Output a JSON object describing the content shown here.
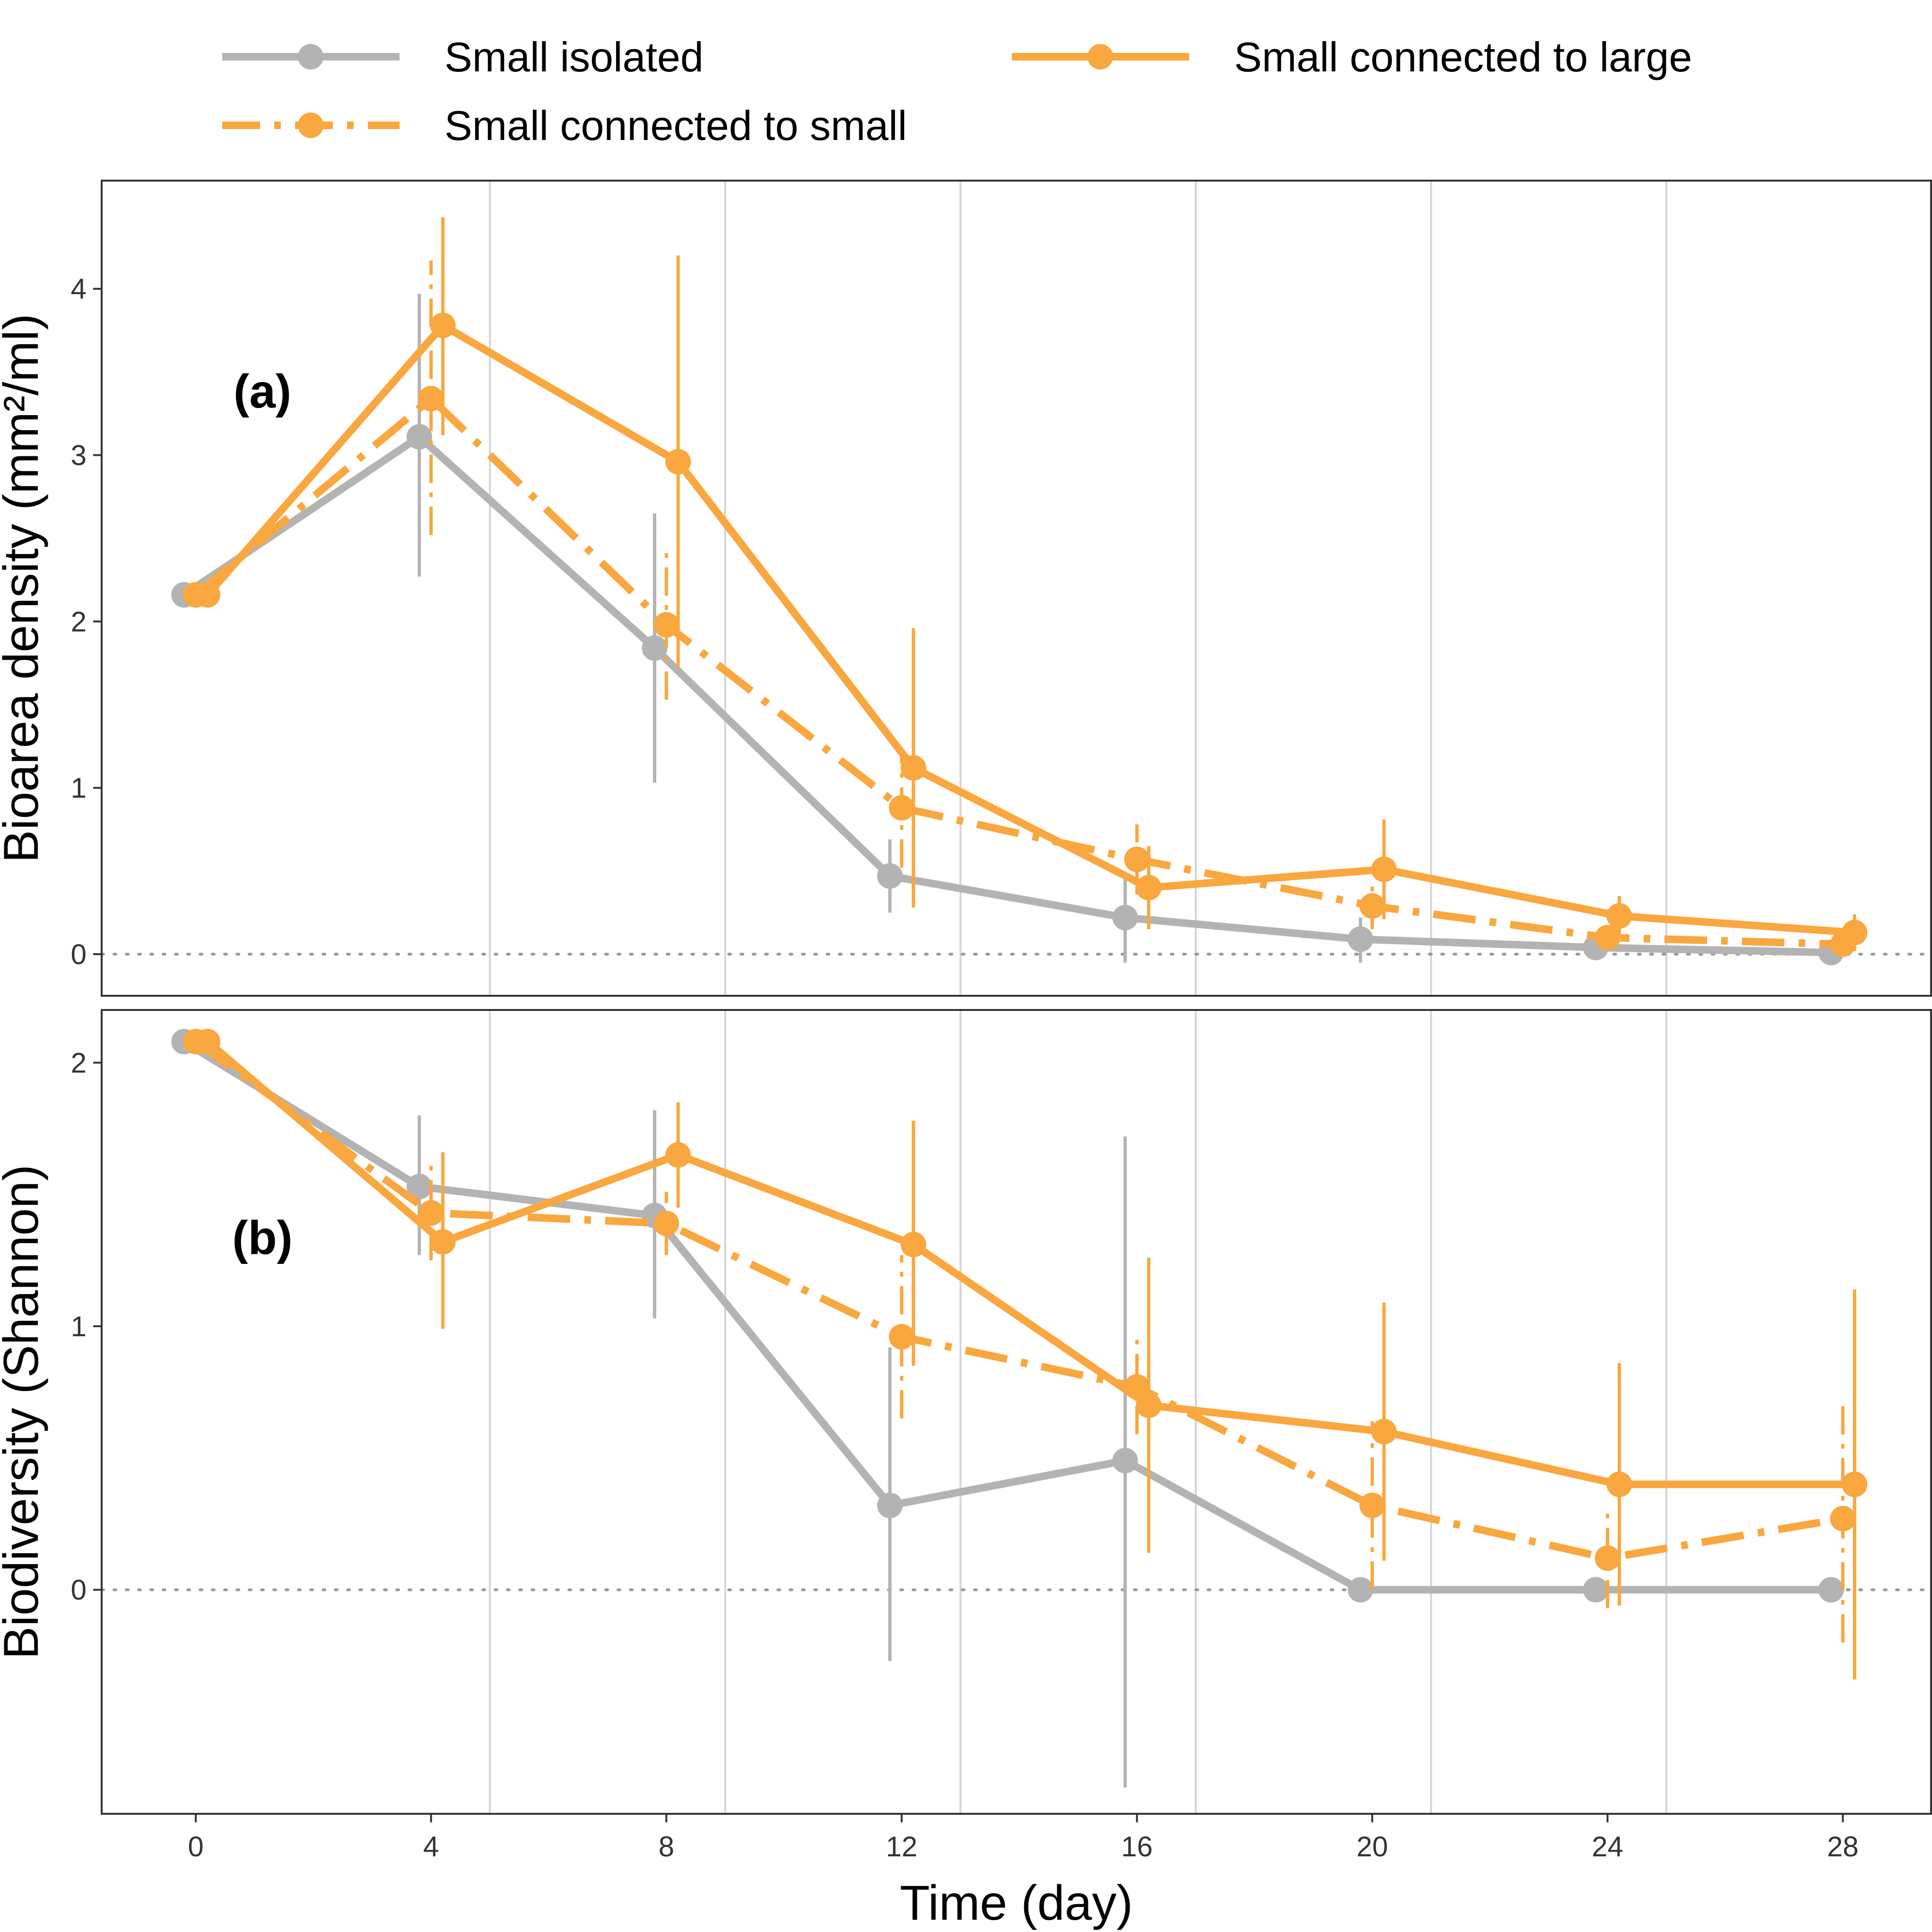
{
  "legend": {
    "entries": [
      {
        "label": "Small isolated",
        "color": "#b3b3b3",
        "dash": "solid"
      },
      {
        "label": "Small connected to small",
        "color": "#f9a73e",
        "dash": "dashed"
      },
      {
        "label": "Small connected to large",
        "color": "#f9a73e",
        "dash": "solid"
      }
    ]
  },
  "chart_data": [
    {
      "type": "line",
      "panel_label": "(a)",
      "ylabel": "Bioarea density (mm²/ml)",
      "xlabel": "Time (day)",
      "x": [
        0,
        4,
        8,
        12,
        16,
        20,
        24,
        28
      ],
      "x_ticks": [
        "0",
        "4",
        "8",
        "12",
        "16",
        "20",
        "24",
        "28"
      ],
      "xlim": [
        -1.6,
        29.5
      ],
      "ylim": [
        -0.25,
        4.65
      ],
      "y_ticks": [
        "0",
        "1",
        "2",
        "3",
        "4"
      ],
      "reference_line_y": 0,
      "series": [
        {
          "name": "Small isolated",
          "color": "#b3b3b3",
          "dash": "solid",
          "values": [
            2.16,
            3.11,
            1.84,
            0.47,
            0.22,
            0.09,
            0.04,
            0.01
          ],
          "err_low": [
            2.16,
            2.27,
            1.03,
            0.25,
            -0.05,
            -0.05,
            0.0,
            -0.02
          ],
          "err_high": [
            2.16,
            3.97,
            2.65,
            0.69,
            0.48,
            0.22,
            0.09,
            0.04
          ]
        },
        {
          "name": "Small connected to small",
          "color": "#f9a73e",
          "dash": "dashed",
          "values": [
            2.16,
            3.34,
            1.98,
            0.88,
            0.57,
            0.29,
            0.1,
            0.06
          ],
          "err_low": [
            2.16,
            2.52,
            1.53,
            0.52,
            0.36,
            0.15,
            0.03,
            0.01
          ],
          "err_high": [
            2.16,
            4.17,
            2.43,
            1.23,
            0.78,
            0.44,
            0.17,
            0.11
          ]
        },
        {
          "name": "Small connected to large",
          "color": "#f9a73e",
          "dash": "solid",
          "values": [
            2.16,
            3.78,
            2.96,
            1.12,
            0.4,
            0.51,
            0.23,
            0.13
          ],
          "err_low": [
            2.16,
            3.12,
            1.72,
            0.28,
            0.15,
            0.21,
            0.1,
            0.02
          ],
          "err_high": [
            2.16,
            4.43,
            4.2,
            1.96,
            0.65,
            0.81,
            0.35,
            0.24
          ]
        }
      ]
    },
    {
      "type": "line",
      "panel_label": "(b)",
      "ylabel": "Biodiversity (Shannon)",
      "xlabel": "Time (day)",
      "x": [
        0,
        4,
        8,
        12,
        16,
        20,
        24,
        28
      ],
      "x_ticks": [
        "0",
        "4",
        "8",
        "12",
        "16",
        "20",
        "24",
        "28"
      ],
      "xlim": [
        -1.6,
        29.5
      ],
      "ylim": [
        -0.85,
        2.2
      ],
      "y_ticks": [
        "0",
        "1",
        "2"
      ],
      "reference_line_y": 0,
      "series": [
        {
          "name": "Small isolated",
          "color": "#b3b3b3",
          "dash": "solid",
          "values": [
            2.08,
            1.53,
            1.42,
            0.32,
            0.49,
            0.0,
            0.0,
            0.0
          ],
          "err_low": [
            2.08,
            1.27,
            1.03,
            -0.27,
            -0.75,
            0.0,
            0.0,
            0.0
          ],
          "err_high": [
            2.08,
            1.8,
            1.82,
            0.92,
            1.72,
            0.0,
            0.0,
            0.0
          ]
        },
        {
          "name": "Small connected to small",
          "color": "#f9a73e",
          "dash": "dashed",
          "values": [
            2.08,
            1.43,
            1.39,
            0.96,
            0.77,
            0.32,
            0.12,
            0.27
          ],
          "err_low": [
            2.08,
            1.25,
            1.27,
            0.65,
            0.59,
            0.0,
            -0.07,
            -0.2
          ],
          "err_high": [
            2.08,
            1.61,
            1.51,
            1.27,
            0.95,
            0.64,
            0.31,
            0.73
          ]
        },
        {
          "name": "Small connected to large",
          "color": "#f9a73e",
          "dash": "solid",
          "values": [
            2.08,
            1.32,
            1.65,
            1.31,
            0.7,
            0.6,
            0.4,
            0.4
          ],
          "err_low": [
            2.08,
            0.99,
            1.45,
            0.85,
            0.14,
            0.11,
            -0.06,
            -0.34
          ],
          "err_high": [
            2.08,
            1.66,
            1.85,
            1.78,
            1.26,
            1.09,
            0.86,
            1.14
          ]
        }
      ]
    }
  ]
}
